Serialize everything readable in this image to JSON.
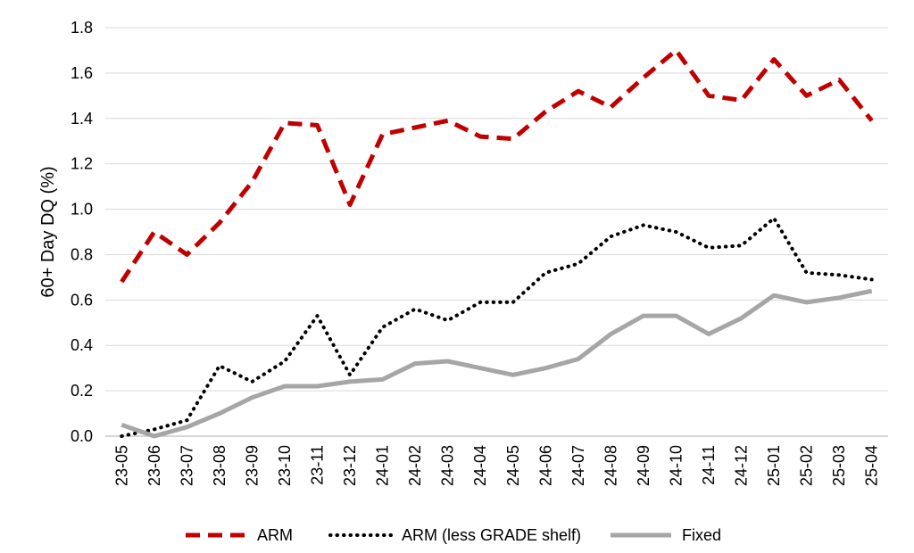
{
  "chart_data": {
    "type": "line",
    "ylabel": "60+ Day DQ (%)",
    "xlabel": "",
    "ylim": [
      0,
      1.8
    ],
    "yticks": [
      "0.0",
      "0.2",
      "0.4",
      "0.6",
      "0.8",
      "1.0",
      "1.2",
      "1.4",
      "1.6",
      "1.8"
    ],
    "grid": true,
    "legend_position": "bottom",
    "categories": [
      "23-05",
      "23-06",
      "23-07",
      "23-08",
      "23-09",
      "23-10",
      "23-11",
      "23-12",
      "24-01",
      "24-02",
      "24-03",
      "24-04",
      "24-05",
      "24-06",
      "24-07",
      "24-08",
      "24-09",
      "24-10",
      "24-11",
      "24-12",
      "25-01",
      "25-02",
      "25-03",
      "25-04"
    ],
    "series": [
      {
        "name": "ARM",
        "color": "#c00000",
        "style": "dashed",
        "values": [
          0.68,
          0.9,
          0.8,
          0.94,
          1.12,
          1.38,
          1.37,
          1.02,
          1.33,
          1.36,
          1.39,
          1.32,
          1.31,
          1.43,
          1.52,
          1.45,
          1.58,
          1.7,
          1.5,
          1.48,
          1.66,
          1.5,
          1.57,
          1.39
        ]
      },
      {
        "name": "ARM (less GRADE shelf)",
        "color": "#000000",
        "style": "dotted",
        "values": [
          0.0,
          0.03,
          0.07,
          0.31,
          0.24,
          0.33,
          0.53,
          0.27,
          0.48,
          0.56,
          0.51,
          0.59,
          0.59,
          0.72,
          0.76,
          0.88,
          0.93,
          0.9,
          0.83,
          0.84,
          0.96,
          0.72,
          0.71,
          0.69
        ]
      },
      {
        "name": "Fixed",
        "color": "#a6a6a6",
        "style": "solid",
        "values": [
          0.05,
          0.0,
          0.04,
          0.1,
          0.17,
          0.22,
          0.22,
          0.24,
          0.25,
          0.32,
          0.33,
          0.3,
          0.27,
          0.3,
          0.34,
          0.45,
          0.53,
          0.53,
          0.45,
          0.52,
          0.62,
          0.59,
          0.61,
          0.64
        ]
      }
    ]
  }
}
